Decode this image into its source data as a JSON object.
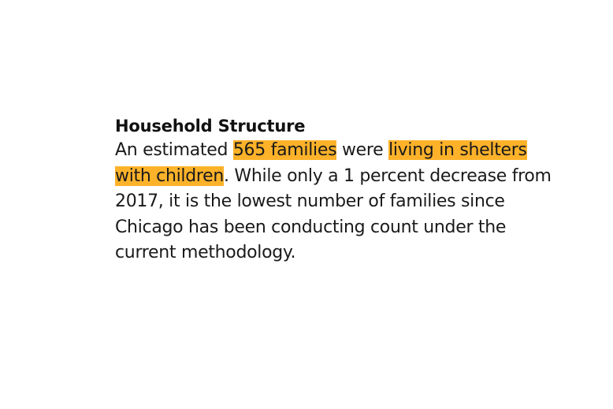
{
  "section": {
    "heading": "Household Structure",
    "paragraph": {
      "part1": "An estimated ",
      "highlight1": "565 families",
      "part2": " were ",
      "highlight2": "living in shelters with children",
      "part3": ". While only a 1 percent decrease from 2017, it is the lowest number of families since Chicago has been conducting count under the current methodology."
    }
  },
  "colors": {
    "highlight": "#fdb22a",
    "text": "#1a1a1a",
    "background": "#ffffff"
  }
}
